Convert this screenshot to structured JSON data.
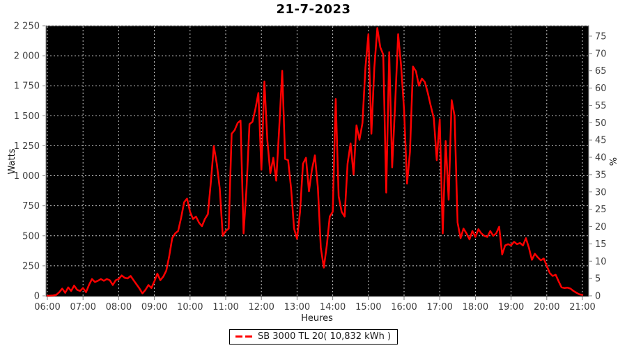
{
  "title": "21-7-2023",
  "legend": {
    "label": "SB 3000 TL 20( 10,832 kWh )"
  },
  "colors": {
    "page_bg": "#ffffff",
    "plot_bg": "#000000",
    "series": "#ff0000",
    "grid": "#c8c8c8",
    "axis": "#808080",
    "tick_text": "#404040",
    "title_text": "#000000"
  },
  "chart_data": {
    "type": "line",
    "title": "21-7-2023",
    "xlabel": "Heures",
    "ylabel_left": "Watts",
    "ylabel_right": "%",
    "grid": true,
    "legend_position": "bottom-center",
    "x_tick_minutes": [
      0,
      60,
      120,
      180,
      240,
      300,
      360,
      420,
      480,
      540,
      600,
      660,
      720,
      780,
      840,
      900
    ],
    "x_tick_labels": [
      "06:00",
      "07:00",
      "08:00",
      "09:00",
      "10:00",
      "11:00",
      "12:00",
      "13:00",
      "14:00",
      "15:00",
      "16:00",
      "17:00",
      "18:00",
      "19:00",
      "20:00",
      "21:00"
    ],
    "y_ticks_left_values": [
      0,
      250,
      500,
      750,
      1000,
      1250,
      1500,
      1750,
      2000,
      2250
    ],
    "y_ticks_left_labels": [
      "0",
      "250",
      "500",
      "750",
      "1 000",
      "1 250",
      "1 500",
      "1 750",
      "2 000",
      "2 250"
    ],
    "y_ticks_right_values": [
      0,
      5,
      10,
      15,
      20,
      25,
      30,
      35,
      40,
      45,
      50,
      55,
      60,
      65,
      70,
      75
    ],
    "ylim_left": [
      0,
      2250
    ],
    "ylim_right": [
      0,
      78
    ],
    "xlim_minutes": [
      0,
      900
    ],
    "series": [
      {
        "name": "SB 3000 TL 20( 10,832 kWh )",
        "color": "#ff0000",
        "points": [
          [
            0,
            0
          ],
          [
            5,
            2
          ],
          [
            10,
            3
          ],
          [
            15,
            8
          ],
          [
            20,
            30
          ],
          [
            25,
            60
          ],
          [
            30,
            25
          ],
          [
            35,
            70
          ],
          [
            40,
            40
          ],
          [
            45,
            85
          ],
          [
            50,
            50
          ],
          [
            55,
            40
          ],
          [
            60,
            65
          ],
          [
            65,
            30
          ],
          [
            70,
            90
          ],
          [
            75,
            140
          ],
          [
            80,
            115
          ],
          [
            85,
            125
          ],
          [
            90,
            140
          ],
          [
            95,
            125
          ],
          [
            100,
            140
          ],
          [
            105,
            130
          ],
          [
            110,
            90
          ],
          [
            115,
            130
          ],
          [
            120,
            140
          ],
          [
            125,
            170
          ],
          [
            130,
            150
          ],
          [
            135,
            145
          ],
          [
            140,
            165
          ],
          [
            145,
            130
          ],
          [
            150,
            95
          ],
          [
            155,
            60
          ],
          [
            160,
            20
          ],
          [
            165,
            50
          ],
          [
            170,
            90
          ],
          [
            175,
            65
          ],
          [
            180,
            120
          ],
          [
            185,
            185
          ],
          [
            190,
            130
          ],
          [
            195,
            160
          ],
          [
            200,
            210
          ],
          [
            205,
            330
          ],
          [
            210,
            480
          ],
          [
            215,
            520
          ],
          [
            220,
            540
          ],
          [
            225,
            650
          ],
          [
            230,
            780
          ],
          [
            235,
            810
          ],
          [
            240,
            700
          ],
          [
            245,
            640
          ],
          [
            250,
            660
          ],
          [
            255,
            610
          ],
          [
            260,
            580
          ],
          [
            265,
            640
          ],
          [
            270,
            680
          ],
          [
            275,
            950
          ],
          [
            280,
            1248
          ],
          [
            285,
            1100
          ],
          [
            290,
            890
          ],
          [
            295,
            500
          ],
          [
            300,
            540
          ],
          [
            305,
            560
          ],
          [
            310,
            1350
          ],
          [
            315,
            1380
          ],
          [
            320,
            1440
          ],
          [
            325,
            1460
          ],
          [
            330,
            520
          ],
          [
            335,
            900
          ],
          [
            340,
            1430
          ],
          [
            345,
            1450
          ],
          [
            350,
            1560
          ],
          [
            355,
            1690
          ],
          [
            360,
            1050
          ],
          [
            365,
            1786
          ],
          [
            370,
            1300
          ],
          [
            375,
            1020
          ],
          [
            380,
            1150
          ],
          [
            385,
            960
          ],
          [
            390,
            1400
          ],
          [
            395,
            1875
          ],
          [
            400,
            1140
          ],
          [
            405,
            1130
          ],
          [
            410,
            890
          ],
          [
            415,
            560
          ],
          [
            420,
            475
          ],
          [
            425,
            700
          ],
          [
            430,
            1100
          ],
          [
            435,
            1150
          ],
          [
            440,
            870
          ],
          [
            445,
            1050
          ],
          [
            450,
            1170
          ],
          [
            455,
            900
          ],
          [
            460,
            400
          ],
          [
            465,
            235
          ],
          [
            470,
            420
          ],
          [
            475,
            660
          ],
          [
            480,
            700
          ],
          [
            485,
            1640
          ],
          [
            490,
            830
          ],
          [
            495,
            700
          ],
          [
            500,
            660
          ],
          [
            505,
            1100
          ],
          [
            510,
            1270
          ],
          [
            515,
            1010
          ],
          [
            520,
            1420
          ],
          [
            525,
            1300
          ],
          [
            530,
            1440
          ],
          [
            535,
            1900
          ],
          [
            540,
            2180
          ],
          [
            545,
            1350
          ],
          [
            550,
            1900
          ],
          [
            555,
            2230
          ],
          [
            560,
            2070
          ],
          [
            565,
            2010
          ],
          [
            570,
            860
          ],
          [
            575,
            2030
          ],
          [
            580,
            1070
          ],
          [
            585,
            1600
          ],
          [
            590,
            2180
          ],
          [
            595,
            1920
          ],
          [
            600,
            1550
          ],
          [
            605,
            935
          ],
          [
            610,
            1200
          ],
          [
            615,
            1910
          ],
          [
            620,
            1870
          ],
          [
            625,
            1750
          ],
          [
            630,
            1810
          ],
          [
            635,
            1780
          ],
          [
            640,
            1690
          ],
          [
            645,
            1580
          ],
          [
            650,
            1480
          ],
          [
            655,
            1130
          ],
          [
            660,
            1470
          ],
          [
            665,
            520
          ],
          [
            670,
            1290
          ],
          [
            675,
            800
          ],
          [
            680,
            1630
          ],
          [
            685,
            1500
          ],
          [
            690,
            610
          ],
          [
            695,
            480
          ],
          [
            700,
            560
          ],
          [
            705,
            520
          ],
          [
            710,
            470
          ],
          [
            715,
            540
          ],
          [
            720,
            490
          ],
          [
            725,
            555
          ],
          [
            730,
            520
          ],
          [
            735,
            500
          ],
          [
            740,
            490
          ],
          [
            745,
            540
          ],
          [
            750,
            500
          ],
          [
            755,
            520
          ],
          [
            760,
            575
          ],
          [
            765,
            345
          ],
          [
            770,
            420
          ],
          [
            775,
            430
          ],
          [
            780,
            420
          ],
          [
            785,
            450
          ],
          [
            790,
            430
          ],
          [
            795,
            440
          ],
          [
            800,
            420
          ],
          [
            805,
            480
          ],
          [
            810,
            400
          ],
          [
            815,
            300
          ],
          [
            820,
            350
          ],
          [
            825,
            320
          ],
          [
            830,
            295
          ],
          [
            835,
            310
          ],
          [
            840,
            250
          ],
          [
            845,
            190
          ],
          [
            850,
            165
          ],
          [
            855,
            175
          ],
          [
            860,
            120
          ],
          [
            865,
            70
          ],
          [
            870,
            65
          ],
          [
            875,
            68
          ],
          [
            880,
            60
          ],
          [
            885,
            40
          ],
          [
            890,
            25
          ],
          [
            895,
            12
          ],
          [
            900,
            8
          ]
        ]
      }
    ]
  }
}
